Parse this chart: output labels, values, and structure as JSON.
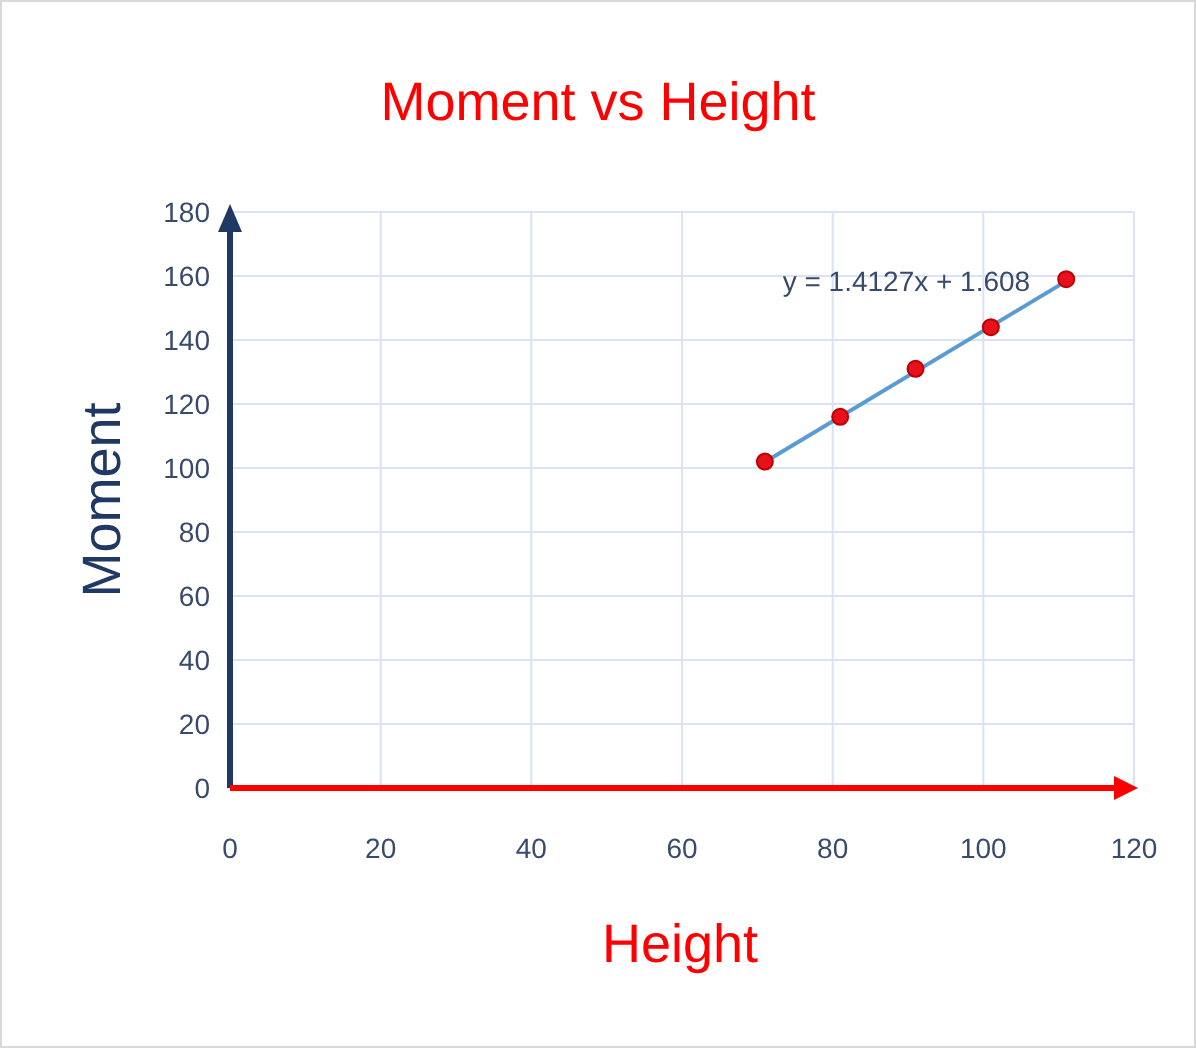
{
  "chart_data": {
    "type": "scatter",
    "title": "Moment vs Height",
    "xlabel": "Height",
    "ylabel": "Moment",
    "series": [
      {
        "color": "#e8101a",
        "x": [
          71,
          81,
          91,
          101,
          111
        ],
        "values": [
          102,
          116,
          131,
          144,
          159
        ],
        "marker": "circle"
      },
      {
        "type": "line",
        "color": "#5b9bd5",
        "x": [
          71,
          111
        ],
        "values": [
          101.9,
          158.4
        ],
        "marker": "none"
      }
    ],
    "annotations": [
      "y = 1.4127x + 1.608"
    ],
    "xlim": [
      0,
      120
    ],
    "xticks": [
      0,
      20,
      40,
      60,
      80,
      100,
      120
    ],
    "ylim": [
      0,
      180
    ],
    "yticks": [
      0,
      20,
      40,
      60,
      80,
      100,
      120,
      140,
      160,
      180
    ],
    "grid": true
  }
}
